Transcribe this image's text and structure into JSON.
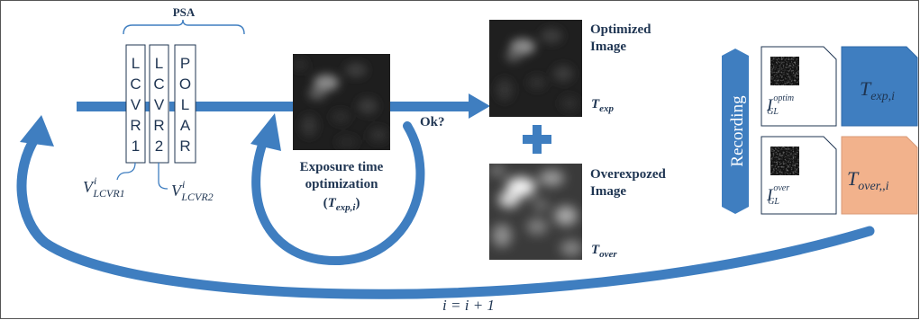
{
  "psa": {
    "title": "PSA",
    "elements": [
      {
        "name": "LCVR1",
        "letters": [
          "L",
          "C",
          "V",
          "R",
          "1"
        ]
      },
      {
        "name": "LCVR2",
        "letters": [
          "L",
          "C",
          "V",
          "R",
          "2"
        ]
      },
      {
        "name": "POLAR",
        "letters": [
          "P",
          "O",
          "L",
          "A",
          "R"
        ]
      }
    ],
    "voltage1": {
      "base": "V",
      "sup": "i",
      "sub": "LCVR1"
    },
    "voltage2": {
      "base": "V",
      "sup": "i",
      "sub": "LCVR2"
    }
  },
  "optimization": {
    "line1": "Exposure time",
    "line2": "optimization",
    "param": {
      "open": "(",
      "base": "T",
      "sub": "exp,i",
      "close": ")"
    }
  },
  "decision": {
    "label": "Ok?"
  },
  "optimized": {
    "line1": "Optimized",
    "line2": "Image",
    "param": {
      "base": "T",
      "sub": "exp"
    }
  },
  "overexposed": {
    "line1": "Overexpozed",
    "line2": "Image",
    "param": {
      "base": "T",
      "sub": "over"
    }
  },
  "recording": {
    "label": "Recording",
    "file1": {
      "base": "I",
      "sup": "optim",
      "sub": "GL"
    },
    "file2": {
      "base": "I",
      "sup": "over",
      "sub": "GL"
    },
    "tag1": {
      "base": "T",
      "sub": "exp,i"
    },
    "tag2": {
      "base": "T",
      "sub": "over,,i"
    }
  },
  "loop": {
    "label": "i = i + 1"
  },
  "colors": {
    "arrow": "#3f7ec0",
    "plus": "#3f7ec0",
    "recording": "#3f7ec0",
    "tag_exp": "#3f7ec0",
    "tag_over": "#f2b28c",
    "text_dark": "#1f3552"
  }
}
